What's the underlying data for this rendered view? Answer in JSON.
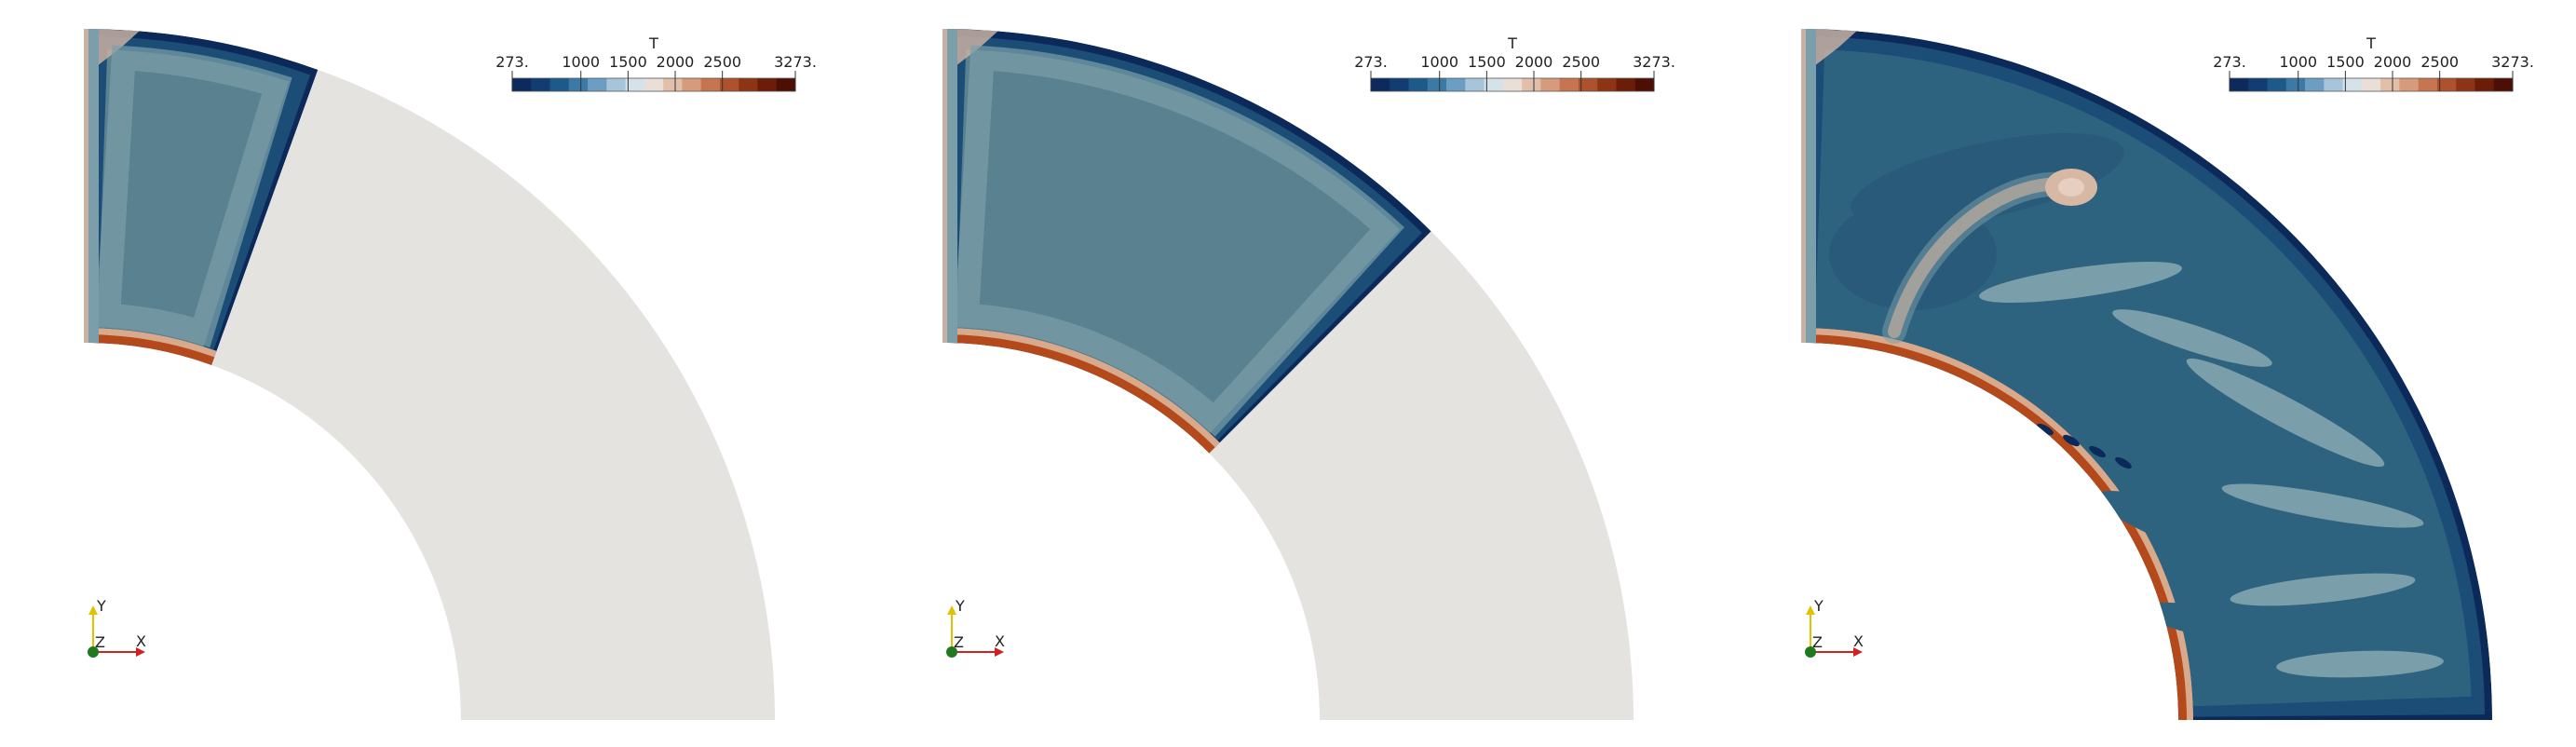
{
  "panels": [
    {
      "name": "panel-1",
      "fill_fraction_of_quarter": 0.22,
      "colorbar": {
        "title": "T",
        "labels": [
          "273.",
          "1000",
          "1500",
          "2000",
          "2500",
          "3273."
        ]
      },
      "axes": {
        "y": "Y",
        "z": "Z",
        "x": "X"
      }
    },
    {
      "name": "panel-2",
      "fill_fraction_of_quarter": 0.5,
      "colorbar": {
        "title": "T",
        "labels": [
          "273.",
          "1000",
          "1500",
          "2000",
          "2500",
          "3273."
        ]
      },
      "axes": {
        "y": "Y",
        "z": "Z",
        "x": "X"
      }
    },
    {
      "name": "panel-3",
      "fill_fraction_of_quarter": 1.0,
      "colorbar": {
        "title": "T",
        "labels": [
          "273.",
          "1000",
          "1500",
          "2000",
          "2500",
          "3273."
        ]
      },
      "axes": {
        "y": "Y",
        "z": "Z",
        "x": "X"
      }
    }
  ],
  "colormap": [
    "#0d2a5c",
    "#123d73",
    "#1c5a8a",
    "#3b7aa6",
    "#6b9ec2",
    "#a6c4da",
    "#d6e2ea",
    "#eadfd8",
    "#e2bfa8",
    "#d69b7a",
    "#c5754f",
    "#ad522c",
    "#8d3415",
    "#6b1d08",
    "#4d0f05"
  ],
  "colors": {
    "background": "#ffffff",
    "empty_shell": "#e4e3e0",
    "interior": "#5a8190",
    "interior_dark": "#2e6380",
    "interior_light": "#7b9faa",
    "cold_layer": "#0b2a5a",
    "cold_layer_mid": "#1b4d77",
    "hot_layer": "#b44a1c",
    "warm_corner": "#c8b0a2"
  }
}
